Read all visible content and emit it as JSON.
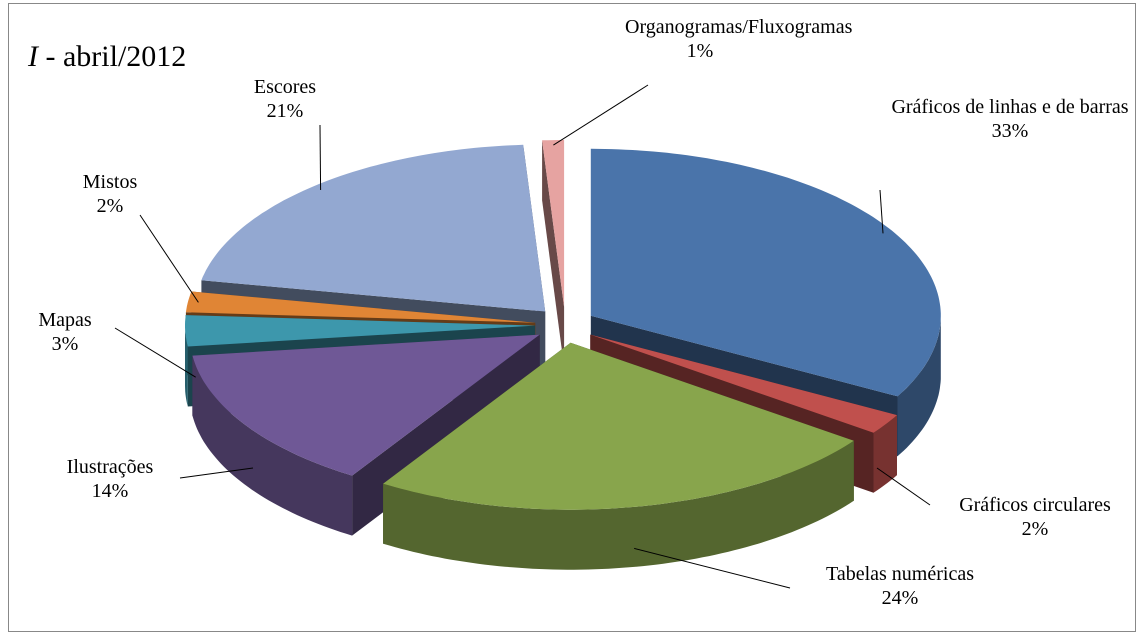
{
  "chart_data": {
    "type": "pie3d",
    "title": "I - abril/2012",
    "categories": [
      "Gráficos de linhas e de barras",
      "Gráficos circulares",
      "Tabelas numéricas",
      "Ilustrações",
      "Mapas",
      "Mistos",
      "Escores",
      "Organogramas/Fluxogramas"
    ],
    "values": [
      33,
      2,
      24,
      14,
      3,
      2,
      21,
      1
    ],
    "value_labels": [
      "33%",
      "2%",
      "24%",
      "14%",
      "3%",
      "2%",
      "21%",
      "1%"
    ],
    "colors": [
      "#4a74aa",
      "#c0504d",
      "#88a54c",
      "#6f5896",
      "#3d97ac",
      "#e08535",
      "#93a8d1",
      "#e6a3a1"
    ]
  }
}
